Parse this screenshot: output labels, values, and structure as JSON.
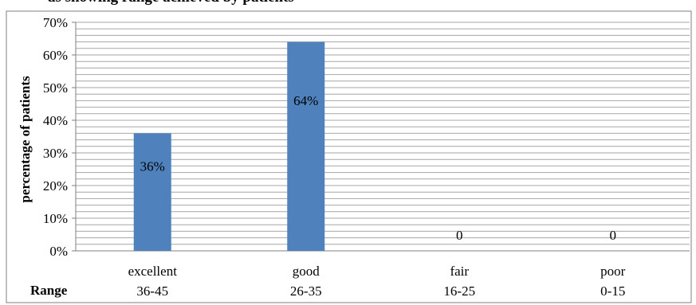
{
  "title": "as showing range achieved by patients",
  "chart_data": {
    "type": "bar",
    "title": "as showing range achieved by patients",
    "xlabel": "Range",
    "ylabel": "percentage of patients",
    "categories": [
      "excellent",
      "good",
      "fair",
      "poor"
    ],
    "category_ranges": [
      "36-45",
      "26-35",
      "16-25",
      "0-15"
    ],
    "values": [
      36,
      64,
      0,
      0
    ],
    "data_labels": [
      "36%",
      "64%",
      "0",
      "0"
    ],
    "yticks": [
      "0%",
      "10%",
      "20%",
      "30%",
      "40%",
      "50%",
      "60%",
      "70%"
    ],
    "ylim": [
      0,
      70
    ],
    "grid": true,
    "bar_color": "#4f81bd",
    "grid_color": "#a6a6a6"
  }
}
